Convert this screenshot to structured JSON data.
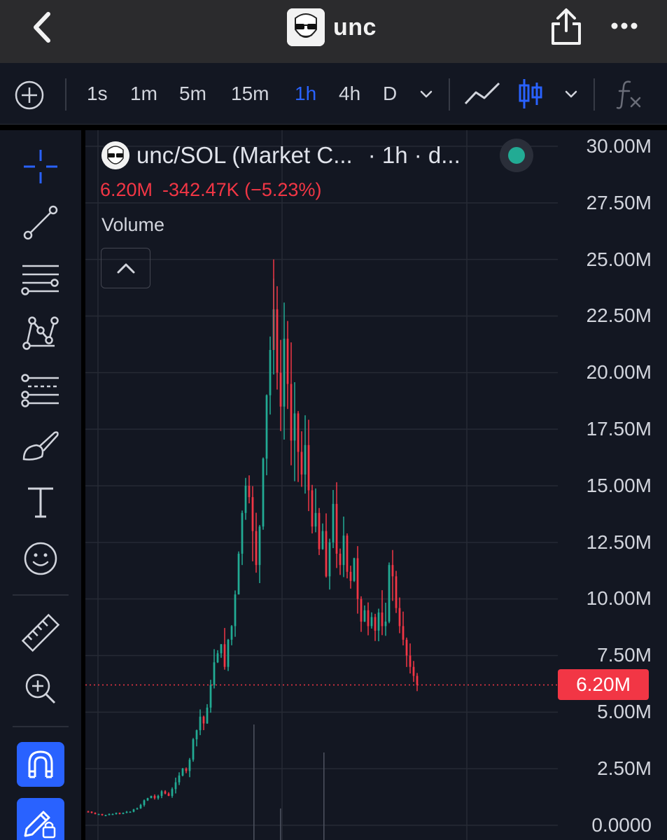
{
  "header": {
    "back_icon": "chevron-left-icon",
    "title": "unc",
    "avatar_icon": "unc-avatar-icon",
    "share_icon": "share-icon",
    "more_icon": "more-horizontal-icon"
  },
  "toolbar": {
    "add_icon": "plus-circle-icon",
    "timeframes": [
      "1s",
      "1m",
      "5m",
      "15m",
      "1h",
      "4h",
      "D"
    ],
    "active_timeframe": "1h",
    "timeframe_dropdown_icon": "chevron-down-icon",
    "line_chart_icon": "line-chart-icon",
    "candle_chart_icon": "candlestick-icon",
    "chart_type_dropdown_icon": "chevron-down-icon",
    "indicators_icon": "fx-icon",
    "accent_color": "#2962ff"
  },
  "sidebar": {
    "tools": [
      "crosshair-icon",
      "trend-line-icon",
      "fib-retracement-icon",
      "pattern-icon",
      "prediction-icon",
      "brush-icon",
      "text-icon",
      "emoji-icon",
      "ruler-icon",
      "zoom-in-icon",
      "magnet-icon",
      "lock-drawing-icon"
    ]
  },
  "legend": {
    "title": "unc/SOL (Market C...",
    "timeframe": "· 1h · d...",
    "last_value": "6.20M",
    "change": "-342.47K (−5.23%)",
    "volume_label": "Volume",
    "collapse_icon": "chevron-up-icon",
    "status": "live"
  },
  "price_axis": {
    "labels": [
      "30.00M",
      "27.50M",
      "25.00M",
      "22.50M",
      "20.00M",
      "17.50M",
      "15.00M",
      "12.50M",
      "10.00M",
      "7.50M",
      "5.00M",
      "2.50M",
      "0.0000"
    ],
    "current_price": "6.20M",
    "current_price_color": "#f23645"
  },
  "colors": {
    "up": "#22ab94",
    "down": "#f23645",
    "background": "#131722"
  },
  "chart_data": {
    "type": "candlestick",
    "symbol": "unc/SOL (Market C...",
    "interval": "1h",
    "ylim": [
      0,
      30000000
    ],
    "last_value": 6200000,
    "approx_close_series_millions": [
      0.6,
      0.55,
      0.5,
      0.5,
      0.45,
      0.45,
      0.5,
      0.5,
      0.55,
      0.5,
      0.55,
      0.6,
      0.6,
      0.7,
      0.75,
      0.9,
      1.1,
      1.2,
      1.3,
      1.2,
      1.3,
      1.5,
      1.4,
      1.3,
      1.6,
      1.9,
      2.2,
      2.5,
      2.4,
      2.9,
      3.8,
      4.2,
      4.8,
      4.5,
      5.2,
      6.2,
      7.2,
      7.6,
      8.0,
      7.0,
      8.2,
      8.8,
      10.2,
      12.0,
      13.8,
      15.0,
      14.5,
      13.0,
      11.5,
      13.2,
      16.2,
      19.0,
      21.0,
      22.8,
      20.0,
      18.5,
      21.5,
      19.5,
      17.0,
      18.2,
      16.5,
      15.5,
      16.8,
      14.8,
      13.2,
      13.8,
      12.2,
      13.0,
      11.0,
      12.5,
      14.2,
      12.0,
      11.5,
      12.8,
      11.2,
      10.8,
      11.8,
      10.0,
      9.0,
      9.5,
      8.8,
      9.2,
      8.6,
      9.4,
      8.8,
      9.0,
      11.5,
      11.0,
      9.6,
      8.8,
      8.2,
      7.5,
      7.0,
      6.6,
      6.2
    ],
    "volume_spikes_x_frac": [
      0.33,
      0.38,
      0.49
    ]
  }
}
